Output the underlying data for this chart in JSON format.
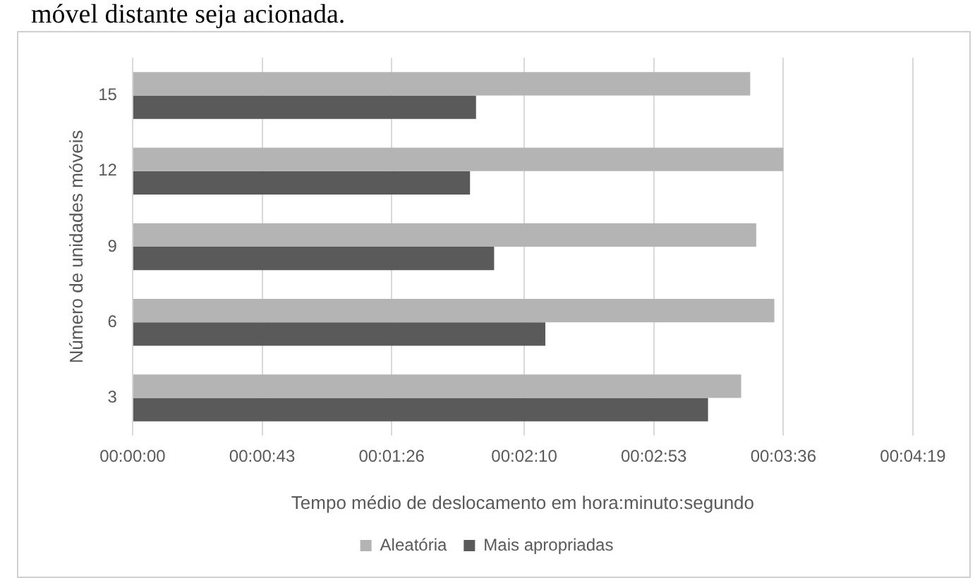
{
  "chart_data": {
    "type": "bar",
    "orientation": "horizontal",
    "categories": [
      "15",
      "12",
      "9",
      "6",
      "3"
    ],
    "series": [
      {
        "name": "Aleatória",
        "color": "#b4b4b4",
        "values": [
          205,
          216,
          207,
          213,
          202
        ]
      },
      {
        "name": "Mais apropriadas",
        "color": "#5a5a5a",
        "values": [
          114,
          112,
          120,
          137,
          191
        ]
      }
    ],
    "xlim": [
      0,
      259
    ],
    "xticks": [
      {
        "value": 0,
        "label": "00:00:00"
      },
      {
        "value": 43,
        "label": "00:00:43"
      },
      {
        "value": 86,
        "label": "00:01:26"
      },
      {
        "value": 130,
        "label": "00:02:10"
      },
      {
        "value": 173,
        "label": "00:02:53"
      },
      {
        "value": 216,
        "label": "00:03:36"
      },
      {
        "value": 259,
        "label": "00:04:19"
      }
    ],
    "xlabel": "Tempo médio de deslocamento em hora:minuto:segundo",
    "ylabel": "Número de unidades móveis",
    "grid": "x",
    "legend": "bottom",
    "annotations": [
      "móvel distante seja acionada."
    ]
  }
}
